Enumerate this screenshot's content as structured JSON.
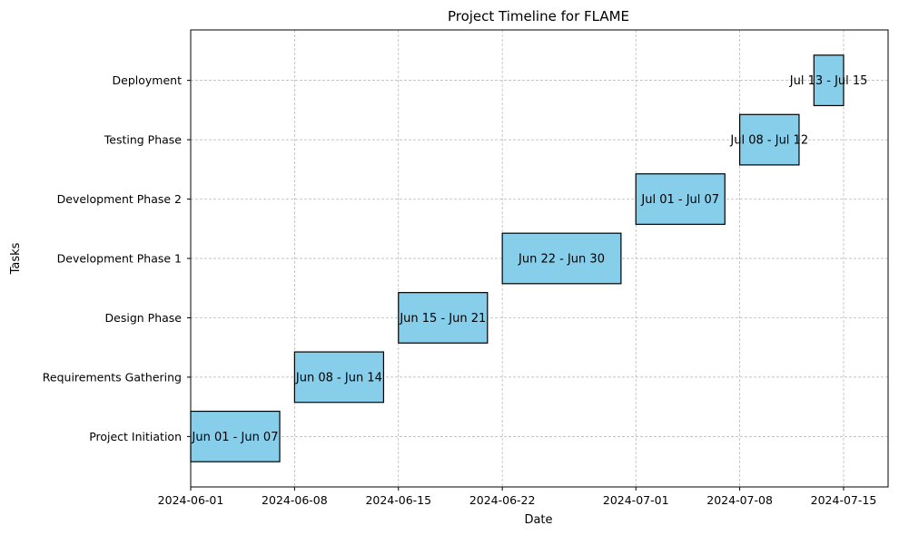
{
  "chart_data": {
    "type": "gantt",
    "title": "Project Timeline for FLAME",
    "xlabel": "Date",
    "ylabel": "Tasks",
    "bar_color": "#87ceeb",
    "bar_edge_color": "#000000",
    "grid": true,
    "xlim": [
      "2024-06-01",
      "2024-07-18"
    ],
    "x_ticks": [
      "2024-06-01",
      "2024-06-08",
      "2024-06-15",
      "2024-06-22",
      "2024-07-01",
      "2024-07-08",
      "2024-07-15"
    ],
    "tasks": [
      {
        "name": "Project Initiation",
        "start": "2024-06-01",
        "end": "2024-06-07",
        "label": "Jun 01 - Jun 07"
      },
      {
        "name": "Requirements Gathering",
        "start": "2024-06-08",
        "end": "2024-06-14",
        "label": "Jun 08 - Jun 14"
      },
      {
        "name": "Design Phase",
        "start": "2024-06-15",
        "end": "2024-06-21",
        "label": "Jun 15 - Jun 21"
      },
      {
        "name": "Development Phase 1",
        "start": "2024-06-22",
        "end": "2024-06-30",
        "label": "Jun 22 - Jun 30"
      },
      {
        "name": "Development Phase 2",
        "start": "2024-07-01",
        "end": "2024-07-07",
        "label": "Jul 01 - Jul 07"
      },
      {
        "name": "Testing Phase",
        "start": "2024-07-08",
        "end": "2024-07-12",
        "label": "Jul 08 - Jul 12"
      },
      {
        "name": "Deployment",
        "start": "2024-07-13",
        "end": "2024-07-15",
        "label": "Jul 13 - Jul 15"
      }
    ]
  }
}
